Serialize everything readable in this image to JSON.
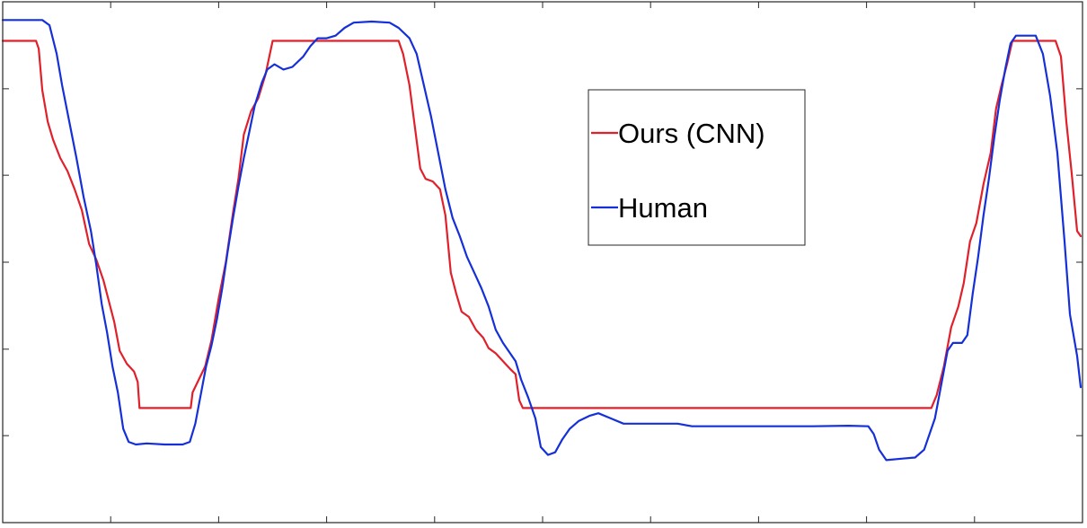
{
  "chart_data": {
    "type": "line",
    "xlim": [
      0,
      1200
    ],
    "ylim": [
      0,
      1
    ],
    "x_ticks": [
      0,
      120,
      240,
      360,
      480,
      600,
      720,
      840,
      960,
      1080,
      1200
    ],
    "y_ticks": [
      0,
      0.167,
      0.333,
      0.5,
      0.667,
      0.833,
      1
    ],
    "tick_labels_visible": false,
    "grid": false,
    "legend": {
      "placement": "top-right-of-center",
      "entries": [
        "Ours (CNN)",
        "Human"
      ]
    },
    "series": [
      {
        "name": "Ours (CNN)",
        "color": "#e0202a",
        "points": [
          [
            0,
            0.925
          ],
          [
            37,
            0.925
          ],
          [
            40,
            0.91
          ],
          [
            44,
            0.83
          ],
          [
            50,
            0.77
          ],
          [
            56,
            0.735
          ],
          [
            64,
            0.7
          ],
          [
            72,
            0.675
          ],
          [
            80,
            0.64
          ],
          [
            88,
            0.6
          ],
          [
            96,
            0.535
          ],
          [
            104,
            0.505
          ],
          [
            112,
            0.465
          ],
          [
            118,
            0.425
          ],
          [
            124,
            0.385
          ],
          [
            130,
            0.33
          ],
          [
            138,
            0.305
          ],
          [
            146,
            0.29
          ],
          [
            150,
            0.27
          ],
          [
            152,
            0.22
          ],
          [
            155,
            0.22
          ],
          [
            200,
            0.22
          ],
          [
            209,
            0.22
          ],
          [
            211,
            0.25
          ],
          [
            218,
            0.275
          ],
          [
            225,
            0.3
          ],
          [
            232,
            0.35
          ],
          [
            240,
            0.43
          ],
          [
            248,
            0.5
          ],
          [
            256,
            0.595
          ],
          [
            262,
            0.66
          ],
          [
            268,
            0.745
          ],
          [
            276,
            0.79
          ],
          [
            284,
            0.815
          ],
          [
            292,
            0.86
          ],
          [
            300,
            0.925
          ],
          [
            310,
            0.925
          ],
          [
            420,
            0.925
          ],
          [
            440,
            0.925
          ],
          [
            445,
            0.9
          ],
          [
            452,
            0.84
          ],
          [
            458,
            0.76
          ],
          [
            464,
            0.68
          ],
          [
            470,
            0.66
          ],
          [
            478,
            0.655
          ],
          [
            486,
            0.64
          ],
          [
            492,
            0.59
          ],
          [
            498,
            0.48
          ],
          [
            504,
            0.44
          ],
          [
            510,
            0.405
          ],
          [
            518,
            0.395
          ],
          [
            526,
            0.37
          ],
          [
            534,
            0.355
          ],
          [
            540,
            0.335
          ],
          [
            548,
            0.325
          ],
          [
            556,
            0.31
          ],
          [
            564,
            0.295
          ],
          [
            570,
            0.285
          ],
          [
            574,
            0.235
          ],
          [
            578,
            0.22
          ],
          [
            600,
            0.22
          ],
          [
            800,
            0.22
          ],
          [
            1032,
            0.22
          ],
          [
            1038,
            0.245
          ],
          [
            1046,
            0.3
          ],
          [
            1054,
            0.375
          ],
          [
            1062,
            0.415
          ],
          [
            1068,
            0.46
          ],
          [
            1075,
            0.54
          ],
          [
            1082,
            0.575
          ],
          [
            1090,
            0.65
          ],
          [
            1098,
            0.71
          ],
          [
            1104,
            0.795
          ],
          [
            1110,
            0.84
          ],
          [
            1116,
            0.88
          ],
          [
            1122,
            0.925
          ],
          [
            1170,
            0.925
          ],
          [
            1176,
            0.895
          ],
          [
            1182,
            0.77
          ],
          [
            1188,
            0.67
          ],
          [
            1194,
            0.56
          ],
          [
            1198,
            0.55
          ]
        ]
      },
      {
        "name": "Human",
        "color": "#1530d8",
        "points": [
          [
            0,
            0.965
          ],
          [
            44,
            0.965
          ],
          [
            52,
            0.955
          ],
          [
            60,
            0.9
          ],
          [
            66,
            0.84
          ],
          [
            74,
            0.77
          ],
          [
            82,
            0.7
          ],
          [
            90,
            0.625
          ],
          [
            98,
            0.56
          ],
          [
            104,
            0.495
          ],
          [
            110,
            0.42
          ],
          [
            116,
            0.365
          ],
          [
            122,
            0.3
          ],
          [
            128,
            0.25
          ],
          [
            134,
            0.18
          ],
          [
            140,
            0.155
          ],
          [
            148,
            0.15
          ],
          [
            160,
            0.152
          ],
          [
            180,
            0.15
          ],
          [
            200,
            0.15
          ],
          [
            208,
            0.155
          ],
          [
            214,
            0.19
          ],
          [
            220,
            0.245
          ],
          [
            226,
            0.3
          ],
          [
            232,
            0.34
          ],
          [
            238,
            0.39
          ],
          [
            244,
            0.45
          ],
          [
            250,
            0.52
          ],
          [
            256,
            0.585
          ],
          [
            262,
            0.645
          ],
          [
            268,
            0.7
          ],
          [
            274,
            0.75
          ],
          [
            280,
            0.8
          ],
          [
            288,
            0.845
          ],
          [
            294,
            0.87
          ],
          [
            302,
            0.88
          ],
          [
            312,
            0.87
          ],
          [
            322,
            0.875
          ],
          [
            334,
            0.895
          ],
          [
            342,
            0.915
          ],
          [
            350,
            0.93
          ],
          [
            360,
            0.93
          ],
          [
            370,
            0.935
          ],
          [
            380,
            0.95
          ],
          [
            390,
            0.96
          ],
          [
            410,
            0.962
          ],
          [
            430,
            0.96
          ],
          [
            440,
            0.95
          ],
          [
            452,
            0.93
          ],
          [
            460,
            0.9
          ],
          [
            468,
            0.84
          ],
          [
            476,
            0.78
          ],
          [
            484,
            0.71
          ],
          [
            492,
            0.64
          ],
          [
            500,
            0.585
          ],
          [
            508,
            0.55
          ],
          [
            516,
            0.51
          ],
          [
            524,
            0.48
          ],
          [
            532,
            0.45
          ],
          [
            540,
            0.415
          ],
          [
            548,
            0.37
          ],
          [
            556,
            0.345
          ],
          [
            564,
            0.325
          ],
          [
            570,
            0.31
          ],
          [
            576,
            0.275
          ],
          [
            584,
            0.24
          ],
          [
            592,
            0.2
          ],
          [
            598,
            0.145
          ],
          [
            606,
            0.13
          ],
          [
            614,
            0.135
          ],
          [
            622,
            0.16
          ],
          [
            630,
            0.18
          ],
          [
            640,
            0.195
          ],
          [
            652,
            0.205
          ],
          [
            662,
            0.21
          ],
          [
            676,
            0.2
          ],
          [
            690,
            0.19
          ],
          [
            720,
            0.19
          ],
          [
            750,
            0.19
          ],
          [
            766,
            0.185
          ],
          [
            800,
            0.185
          ],
          [
            860,
            0.185
          ],
          [
            900,
            0.185
          ],
          [
            940,
            0.186
          ],
          [
            962,
            0.185
          ],
          [
            968,
            0.17
          ],
          [
            974,
            0.14
          ],
          [
            982,
            0.12
          ],
          [
            1000,
            0.123
          ],
          [
            1014,
            0.125
          ],
          [
            1024,
            0.14
          ],
          [
            1030,
            0.17
          ],
          [
            1036,
            0.2
          ],
          [
            1042,
            0.255
          ],
          [
            1050,
            0.33
          ],
          [
            1056,
            0.345
          ],
          [
            1066,
            0.345
          ],
          [
            1072,
            0.36
          ],
          [
            1078,
            0.44
          ],
          [
            1084,
            0.51
          ],
          [
            1090,
            0.59
          ],
          [
            1096,
            0.66
          ],
          [
            1102,
            0.74
          ],
          [
            1108,
            0.81
          ],
          [
            1114,
            0.87
          ],
          [
            1120,
            0.92
          ],
          [
            1126,
            0.935
          ],
          [
            1140,
            0.935
          ],
          [
            1148,
            0.935
          ],
          [
            1156,
            0.9
          ],
          [
            1164,
            0.82
          ],
          [
            1172,
            0.71
          ],
          [
            1180,
            0.54
          ],
          [
            1186,
            0.4
          ],
          [
            1194,
            0.32
          ],
          [
            1198,
            0.26
          ]
        ]
      }
    ]
  }
}
